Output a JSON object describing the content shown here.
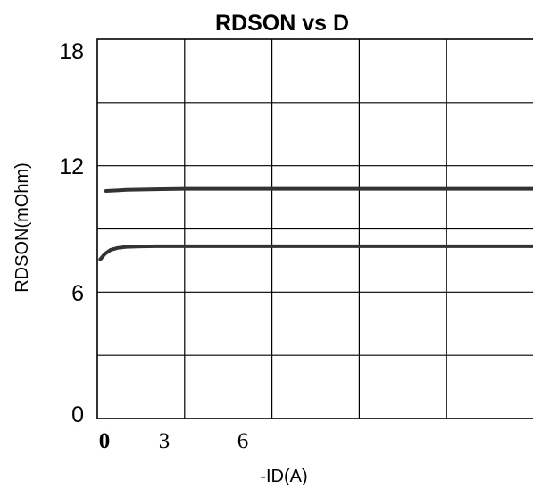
{
  "chart_data": {
    "type": "line",
    "title": "RDSON vs D",
    "xlabel": "-ID(A)",
    "ylabel": "RDSON(mOhm)",
    "xlim": [
      0,
      15
    ],
    "ylim": [
      0,
      18
    ],
    "xticks": [
      "0",
      "3",
      "6"
    ],
    "yticks": [
      "18",
      "12",
      "6",
      "0"
    ],
    "grid": true,
    "series": [
      {
        "x": [
          0.3,
          1,
          2,
          3,
          4,
          5,
          6,
          7,
          8,
          9,
          10,
          11,
          12,
          13,
          14,
          15
        ],
        "y": [
          10.8,
          10.85,
          10.88,
          10.9,
          10.9,
          10.9,
          10.9,
          10.9,
          10.9,
          10.9,
          10.9,
          10.9,
          10.9,
          10.9,
          10.9,
          10.9
        ]
      },
      {
        "x": [
          0.1,
          0.25,
          0.45,
          0.7,
          1.0,
          1.5,
          2,
          3,
          4,
          5,
          6,
          7,
          8,
          9,
          10,
          11,
          12,
          13,
          14,
          15
        ],
        "y": [
          7.55,
          7.8,
          8.0,
          8.1,
          8.15,
          8.17,
          8.18,
          8.18,
          8.18,
          8.18,
          8.18,
          8.18,
          8.18,
          8.18,
          8.18,
          8.18,
          8.18,
          8.18,
          8.18,
          8.18
        ]
      }
    ]
  }
}
